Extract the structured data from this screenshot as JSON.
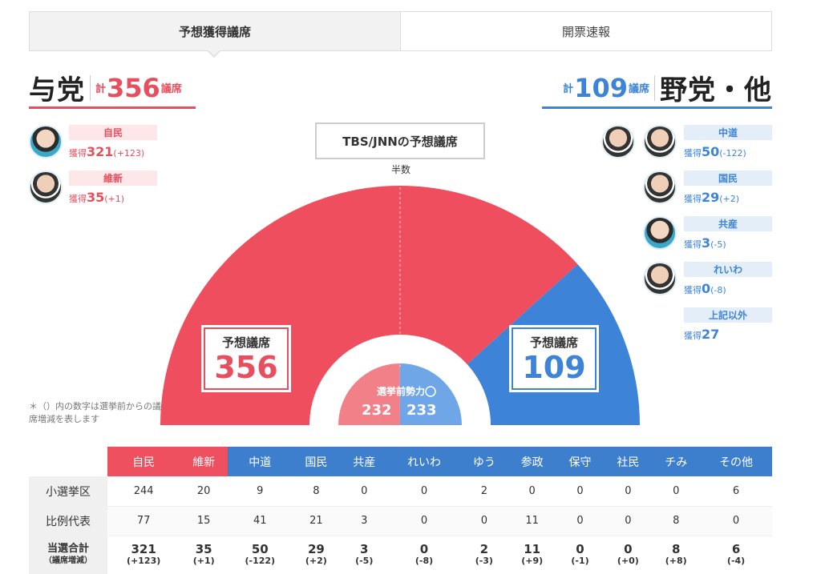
{
  "tabs": [
    {
      "label": "予想獲得議席",
      "active": true
    },
    {
      "label": "開票速報",
      "active": false
    }
  ],
  "ruling": {
    "name": "与党",
    "kei": "計",
    "total": "356",
    "unit": "議席",
    "color": "#e84f5e"
  },
  "opposition": {
    "name": "野党・他",
    "kei": "計",
    "total": "109",
    "unit": "議席",
    "color": "#3d84d9"
  },
  "ruling_parties": [
    {
      "label": "自民",
      "gain_label": "獲得",
      "gain": "321",
      "diff": "(+123)"
    },
    {
      "label": "維新",
      "gain_label": "獲得",
      "gain": "35",
      "diff": "(+1)"
    }
  ],
  "opposition_parties": [
    {
      "label": "中道",
      "gain_label": "獲得",
      "gain": "50",
      "diff": "(-122)"
    },
    {
      "label": "国民",
      "gain_label": "獲得",
      "gain": "29",
      "diff": "(+2)"
    },
    {
      "label": "共産",
      "gain_label": "獲得",
      "gain": "3",
      "diff": "(-5)"
    },
    {
      "label": "れいわ",
      "gain_label": "獲得",
      "gain": "0",
      "diff": "(-8)"
    },
    {
      "label": "上記以外",
      "gain_label": "獲得",
      "gain": "27",
      "diff": ""
    }
  ],
  "chart": {
    "title": "TBS/JNNの予想議席",
    "half_label": "半数",
    "seat_label": "予想議席",
    "ruling_seats": "356",
    "opposition_seats": "109",
    "pre_label": "選挙前勢力",
    "pre_ruling": "232",
    "pre_opposition": "233"
  },
  "chart_data": {
    "type": "pie",
    "title": "TBS/JNNの予想議席",
    "categories": [
      "与党",
      "野党・他"
    ],
    "values": [
      356,
      109
    ],
    "inner": {
      "label": "選挙前勢力",
      "categories": [
        "与党",
        "野党・他"
      ],
      "values": [
        232,
        233
      ]
    },
    "colors": [
      "#ee4e5e",
      "#3d84d9"
    ],
    "inner_colors": [
      "#f28089",
      "#6ea6e8"
    ]
  },
  "note": "＊（）内の数字は選挙前からの議席増減を表します",
  "table": {
    "columns": [
      {
        "label": "自民",
        "color": "#ee5060"
      },
      {
        "label": "維新",
        "color": "#ee5060"
      },
      {
        "label": "中道",
        "color": "#3d7fcd"
      },
      {
        "label": "国民",
        "color": "#3d7fcd"
      },
      {
        "label": "共産",
        "color": "#3d7fcd"
      },
      {
        "label": "れいわ",
        "color": "#3d7fcd"
      },
      {
        "label": "ゆう",
        "color": "#3d7fcd"
      },
      {
        "label": "参政",
        "color": "#3d7fcd"
      },
      {
        "label": "保守",
        "color": "#3d7fcd"
      },
      {
        "label": "社民",
        "color": "#3d7fcd"
      },
      {
        "label": "チみ",
        "color": "#3d7fcd"
      },
      {
        "label": "その他",
        "color": "#3d7fcd"
      }
    ],
    "rows": [
      {
        "label": "小選挙区",
        "values": [
          "244",
          "20",
          "9",
          "8",
          "0",
          "0",
          "2",
          "0",
          "0",
          "0",
          "0",
          "6"
        ]
      },
      {
        "label": "比例代表",
        "values": [
          "77",
          "15",
          "41",
          "21",
          "3",
          "0",
          "0",
          "11",
          "0",
          "0",
          "8",
          "0"
        ]
      }
    ],
    "total": {
      "label": "当選合計",
      "sublabel": "（議席増減）",
      "values": [
        "321",
        "35",
        "50",
        "29",
        "3",
        "0",
        "2",
        "11",
        "0",
        "0",
        "8",
        "6"
      ],
      "diffs": [
        "(+123)",
        "(+1)",
        "(-122)",
        "(+2)",
        "(-5)",
        "(-8)",
        "(-3)",
        "(+9)",
        "(-1)",
        "(+0)",
        "(+8)",
        "(-4)"
      ]
    }
  }
}
